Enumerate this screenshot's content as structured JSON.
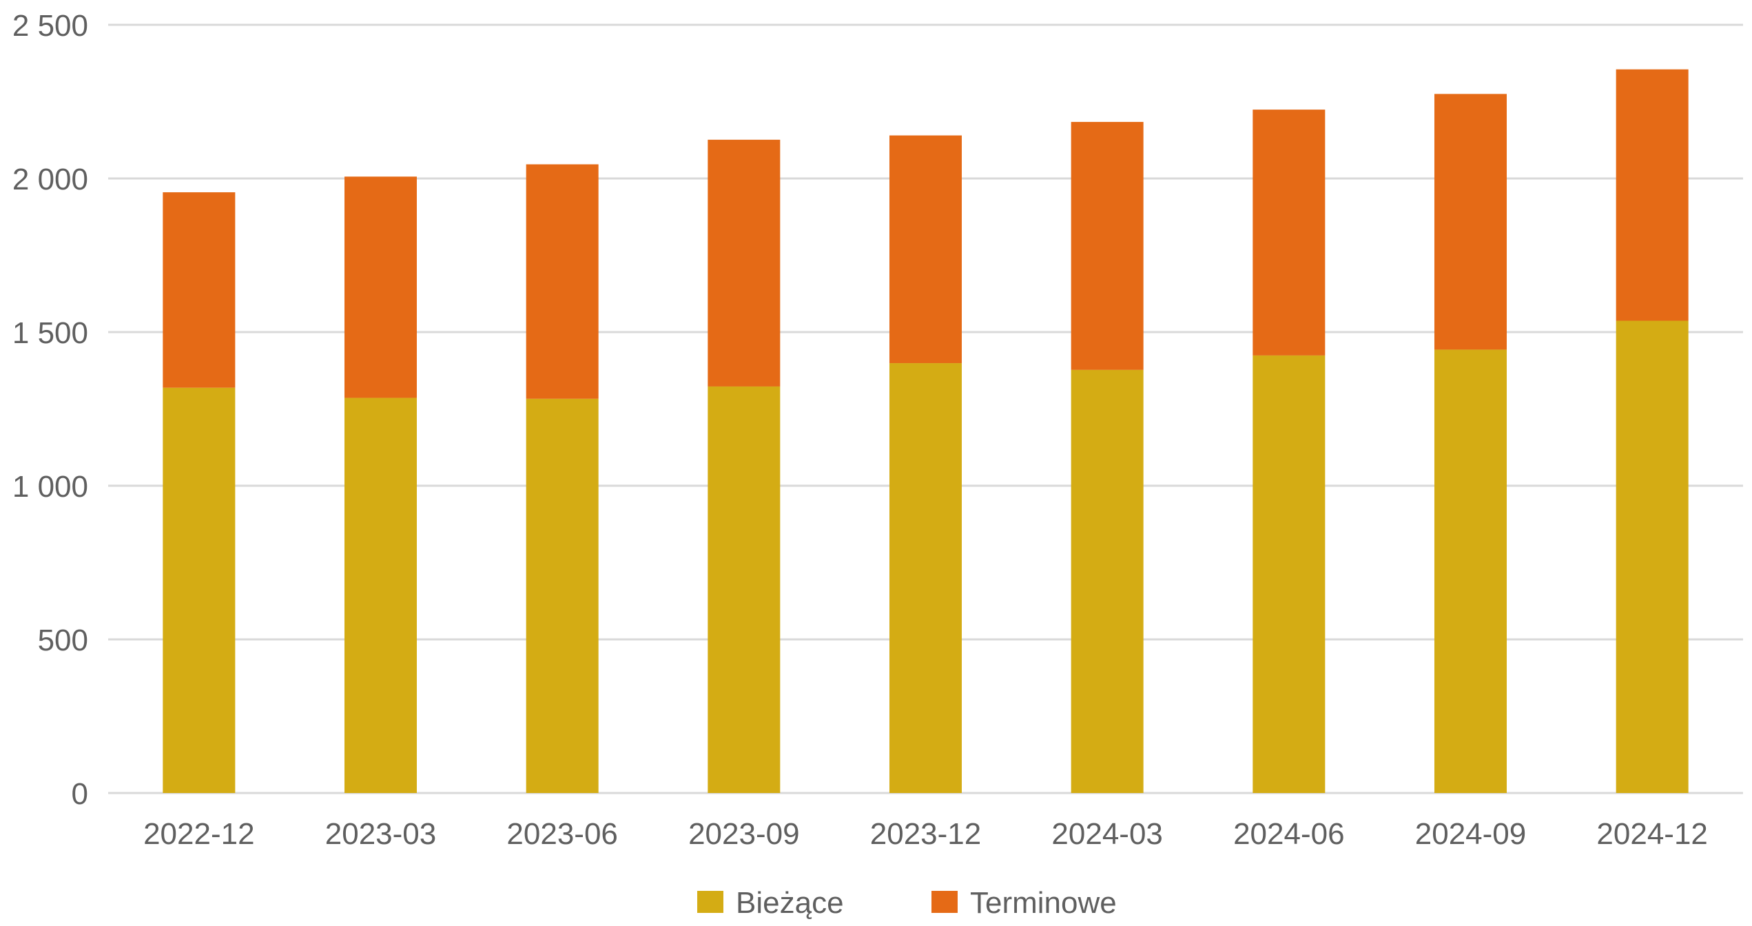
{
  "chart_data": {
    "type": "bar",
    "stacked": true,
    "title": "",
    "xlabel": "",
    "ylabel": "",
    "categories": [
      "2022-12",
      "2023-03",
      "2023-06",
      "2023-09",
      "2023-12",
      "2024-03",
      "2024-06",
      "2024-09",
      "2024-12"
    ],
    "series": [
      {
        "name": "Bieżące",
        "color": "#d4ac14",
        "values": [
          1319,
          1286,
          1283,
          1323,
          1399,
          1377,
          1424,
          1443,
          1537
        ]
      },
      {
        "name": "Terminowe",
        "color": "#e56a16",
        "values": [
          636,
          720,
          763,
          803,
          741,
          807,
          800,
          832,
          818
        ]
      }
    ],
    "ylim": [
      0,
      2500
    ],
    "yticks": [
      0,
      500,
      1000,
      1500,
      2000,
      2500
    ],
    "ytick_labels": [
      "0",
      "500",
      "1 000",
      "1 500",
      "2 000",
      "2 500"
    ],
    "grid": true,
    "legend_position": "bottom"
  }
}
